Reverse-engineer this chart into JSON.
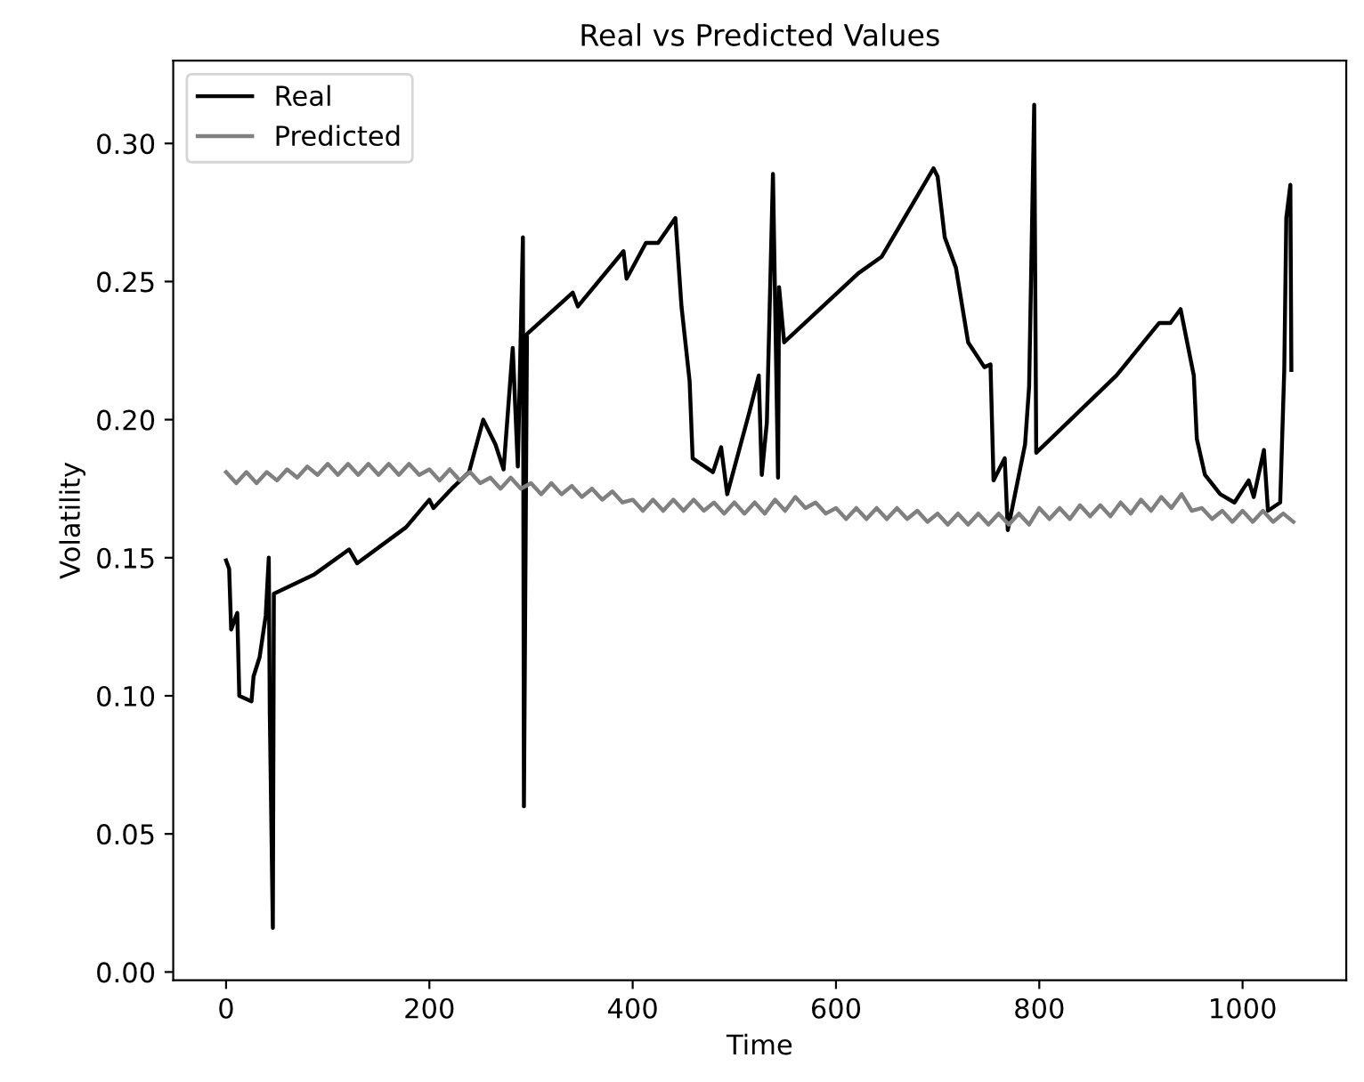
{
  "chart_data": {
    "type": "line",
    "title": "Real vs Predicted Values",
    "xlabel": "Time",
    "ylabel": "Volatility",
    "xlim": [
      -52,
      1102
    ],
    "ylim": [
      -0.003,
      0.33
    ],
    "xticks": [
      0,
      200,
      400,
      600,
      800,
      1000
    ],
    "yticks": [
      {
        "value": 0.0,
        "label": "0.00"
      },
      0.05,
      {
        "value": 0.1,
        "label": "0.10"
      },
      0.15,
      {
        "value": 0.2,
        "label": "0.20"
      },
      0.25,
      {
        "value": 0.3,
        "label": "0.30"
      }
    ],
    "legend": "top left",
    "grid": false,
    "line_style": "solid",
    "marker": "none",
    "series": [
      {
        "name": "Real",
        "color": "#000000",
        "x": [
          0,
          3,
          5,
          11,
          13,
          25,
          27,
          33,
          39,
          42,
          43,
          46,
          47,
          87,
          121,
          129,
          177,
          200,
          204,
          222,
          239,
          253,
          265,
          273,
          282,
          287,
          292,
          293,
          296,
          341,
          346,
          391,
          394,
          413,
          425,
          442,
          448,
          456,
          459,
          479,
          487,
          493,
          515,
          524,
          527,
          532,
          538,
          543,
          544,
          549,
          622,
          645,
          696,
          700,
          707,
          718,
          730,
          746,
          752,
          755,
          766,
          769,
          786,
          790,
          795,
          797,
          876,
          918,
          929,
          939,
          952,
          955,
          963,
          978,
          992,
          1006,
          1011,
          1021,
          1025,
          1037,
          1041,
          1043,
          1047,
          1048
        ],
        "values": [
          0.149,
          0.146,
          0.124,
          0.13,
          0.1,
          0.098,
          0.107,
          0.114,
          0.129,
          0.15,
          0.094,
          0.016,
          0.137,
          0.144,
          0.153,
          0.148,
          0.161,
          0.171,
          0.168,
          0.175,
          0.181,
          0.2,
          0.191,
          0.182,
          0.226,
          0.183,
          0.266,
          0.06,
          0.231,
          0.246,
          0.241,
          0.261,
          0.251,
          0.264,
          0.264,
          0.273,
          0.241,
          0.214,
          0.186,
          0.181,
          0.19,
          0.173,
          0.203,
          0.216,
          0.18,
          0.199,
          0.289,
          0.179,
          0.248,
          0.228,
          0.253,
          0.259,
          0.291,
          0.288,
          0.266,
          0.255,
          0.228,
          0.219,
          0.22,
          0.178,
          0.186,
          0.16,
          0.191,
          0.212,
          0.314,
          0.188,
          0.216,
          0.235,
          0.235,
          0.24,
          0.216,
          0.193,
          0.18,
          0.173,
          0.17,
          0.178,
          0.172,
          0.189,
          0.167,
          0.17,
          0.218,
          0.273,
          0.285,
          0.218
        ]
      },
      {
        "name": "Predicted",
        "color": "#808080",
        "x": [
          0,
          10,
          20,
          30,
          40,
          50,
          60,
          70,
          80,
          90,
          100,
          110,
          120,
          130,
          140,
          150,
          160,
          170,
          180,
          190,
          200,
          210,
          220,
          230,
          240,
          250,
          260,
          270,
          280,
          290,
          300,
          310,
          320,
          330,
          340,
          350,
          360,
          370,
          380,
          390,
          400,
          410,
          420,
          430,
          440,
          450,
          460,
          470,
          480,
          490,
          500,
          510,
          520,
          530,
          540,
          550,
          560,
          570,
          580,
          590,
          600,
          610,
          620,
          630,
          640,
          650,
          660,
          670,
          680,
          690,
          700,
          710,
          720,
          730,
          740,
          750,
          760,
          770,
          780,
          790,
          800,
          810,
          820,
          830,
          840,
          850,
          860,
          870,
          880,
          890,
          900,
          910,
          920,
          930,
          940,
          950,
          960,
          970,
          980,
          990,
          1000,
          1010,
          1020,
          1030,
          1040,
          1050
        ],
        "values": [
          0.181,
          0.177,
          0.181,
          0.177,
          0.181,
          0.178,
          0.182,
          0.179,
          0.183,
          0.18,
          0.184,
          0.18,
          0.184,
          0.18,
          0.184,
          0.18,
          0.184,
          0.18,
          0.184,
          0.18,
          0.182,
          0.178,
          0.182,
          0.178,
          0.181,
          0.177,
          0.179,
          0.175,
          0.179,
          0.175,
          0.177,
          0.173,
          0.177,
          0.173,
          0.176,
          0.172,
          0.175,
          0.171,
          0.174,
          0.17,
          0.171,
          0.167,
          0.171,
          0.167,
          0.171,
          0.167,
          0.171,
          0.167,
          0.17,
          0.166,
          0.17,
          0.166,
          0.17,
          0.166,
          0.171,
          0.167,
          0.172,
          0.168,
          0.17,
          0.166,
          0.168,
          0.164,
          0.168,
          0.164,
          0.168,
          0.164,
          0.168,
          0.164,
          0.167,
          0.163,
          0.166,
          0.162,
          0.166,
          0.162,
          0.166,
          0.162,
          0.166,
          0.162,
          0.166,
          0.162,
          0.168,
          0.164,
          0.168,
          0.164,
          0.169,
          0.165,
          0.169,
          0.165,
          0.17,
          0.166,
          0.171,
          0.167,
          0.172,
          0.168,
          0.173,
          0.167,
          0.168,
          0.164,
          0.167,
          0.163,
          0.167,
          0.163,
          0.167,
          0.163,
          0.166,
          0.163
        ]
      }
    ]
  }
}
